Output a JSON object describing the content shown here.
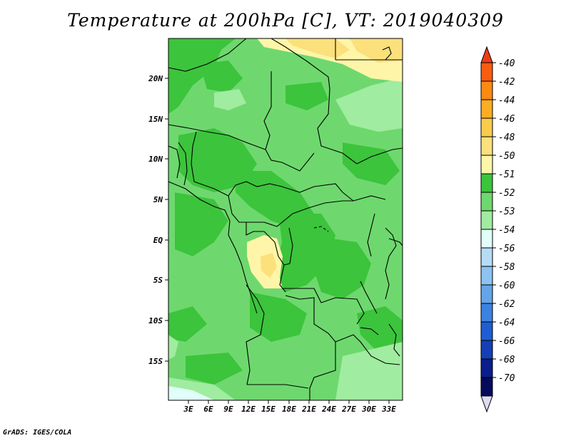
{
  "title": "Temperature at 200hPa [C], VT: 2019040309",
  "footer": "GrADS: IGES/COLA",
  "map": {
    "lat_ticks": [
      "20N",
      "15N",
      "10N",
      "5N",
      "EQ",
      "5S",
      "10S",
      "15S"
    ],
    "lon_ticks": [
      "3E",
      "6E",
      "9E",
      "12E",
      "15E",
      "18E",
      "21E",
      "24E",
      "27E",
      "30E",
      "33E"
    ],
    "colors": {
      "m52": "#3cc43c",
      "m53": "#6ed86e",
      "m54": "#a0eca0",
      "m51": "#fff5a8",
      "m50": "#fbe07b",
      "pale": "#e0fff8",
      "border": "#000000"
    }
  },
  "colorbar": {
    "labels": [
      "-40",
      "-42",
      "-44",
      "-46",
      "-48",
      "-50",
      "-51",
      "-52",
      "-53",
      "-54",
      "-56",
      "-58",
      "-60",
      "-62",
      "-64",
      "-66",
      "-68",
      "-70"
    ],
    "colors": [
      "#f03c14",
      "#f85c10",
      "#fa8a12",
      "#fcad22",
      "#fbcb4c",
      "#fbe07b",
      "#fff5a8",
      "#3cc43c",
      "#6ed86e",
      "#a0eca0",
      "#e0fff8",
      "#b4dcf4",
      "#8cc3f0",
      "#64a5ea",
      "#3c82e0",
      "#1e5ed2",
      "#1440b4",
      "#0a1e8c",
      "#050a5a",
      "#dcdcf4"
    ]
  }
}
